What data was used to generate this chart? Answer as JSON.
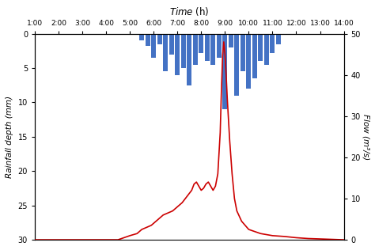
{
  "ylabel_left": "Rainfall depth (mm)",
  "ylabel_right": "Flow (m³/s)",
  "xlim": [
    1,
    14
  ],
  "xticks": [
    1,
    2,
    3,
    4,
    5,
    6,
    7,
    8,
    9,
    10,
    11,
    12,
    13,
    14
  ],
  "xticklabels": [
    "1:00",
    "2:00",
    "3:00",
    "4:00",
    "5:00",
    "6:00",
    "7:00",
    "8:00",
    "9:00",
    "10:00",
    "11:00",
    "12:00",
    "13:00",
    "14:00"
  ],
  "ylim_left": [
    30,
    0
  ],
  "ylim_right": [
    0,
    50
  ],
  "yticks_left": [
    0,
    5,
    10,
    15,
    20,
    25,
    30
  ],
  "yticks_right": [
    0,
    10,
    20,
    30,
    40,
    50
  ],
  "bar_color": "#4472C4",
  "line_color": "#CC0000",
  "bar_x": [
    5.5,
    5.75,
    6.0,
    6.25,
    6.5,
    6.75,
    7.0,
    7.25,
    7.5,
    7.75,
    8.0,
    8.25,
    8.5,
    8.75,
    9.0,
    9.25,
    9.5,
    9.75,
    10.0,
    10.25,
    10.5,
    10.75,
    11.0,
    11.25
  ],
  "bar_heights": [
    1.0,
    1.8,
    3.5,
    1.5,
    5.5,
    3.0,
    6.0,
    5.0,
    7.5,
    4.5,
    2.8,
    4.0,
    4.5,
    3.5,
    11.0,
    2.0,
    9.0,
    5.5,
    8.0,
    6.5,
    4.0,
    4.5,
    2.8,
    1.5
  ],
  "flow_x": [
    1.0,
    2.0,
    3.0,
    4.0,
    4.5,
    5.0,
    5.3,
    5.5,
    5.7,
    5.9,
    6.0,
    6.2,
    6.4,
    6.6,
    6.8,
    7.0,
    7.2,
    7.4,
    7.6,
    7.7,
    7.8,
    7.85,
    7.9,
    8.0,
    8.1,
    8.2,
    8.3,
    8.5,
    8.6,
    8.7,
    8.8,
    8.85,
    8.9,
    8.95,
    9.0,
    9.05,
    9.1,
    9.2,
    9.3,
    9.4,
    9.5,
    9.7,
    10.0,
    10.5,
    11.0,
    11.5,
    12.0,
    12.5,
    13.0,
    13.5,
    14.0
  ],
  "flow_y": [
    0.0,
    0.0,
    0.0,
    0.0,
    0.0,
    1.0,
    1.5,
    2.5,
    3.0,
    3.5,
    4.0,
    5.0,
    6.0,
    6.5,
    7.0,
    8.0,
    9.0,
    10.5,
    12.0,
    13.5,
    14.0,
    13.5,
    13.0,
    12.0,
    12.5,
    13.5,
    14.0,
    12.0,
    13.0,
    16.0,
    26.0,
    36.0,
    44.5,
    48.0,
    45.0,
    40.0,
    34.0,
    24.0,
    16.0,
    10.0,
    7.0,
    4.5,
    2.5,
    1.5,
    1.0,
    0.8,
    0.5,
    0.3,
    0.2,
    0.1,
    0.0
  ]
}
